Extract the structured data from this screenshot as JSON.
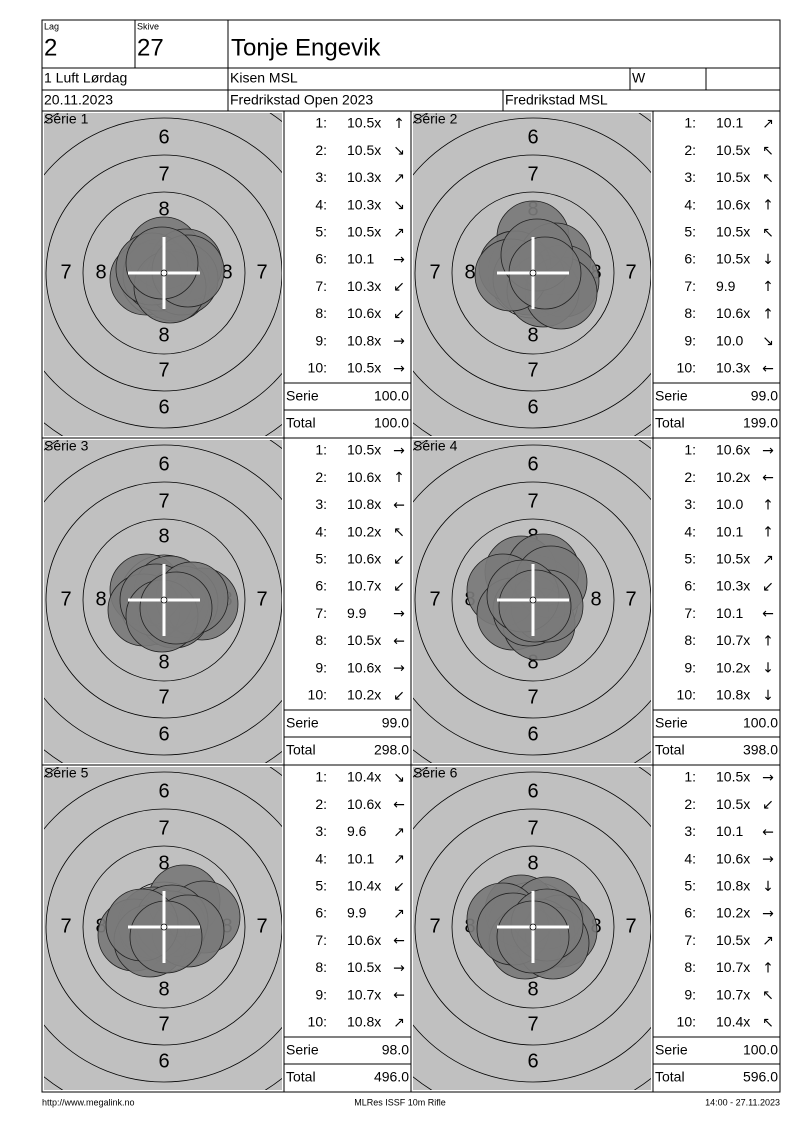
{
  "header": {
    "lag_label": "Lag",
    "lag": "2",
    "skive_label": "Skive",
    "skive": "27",
    "name": "Tonje Engevik",
    "class": "1 Luft Lørdag",
    "club": "Kisen MSL",
    "w": "W",
    "date": "20.11.2023",
    "event": "Fredrikstad Open 2023",
    "organizer": "Fredrikstad MSL"
  },
  "rings": [
    "6",
    "7",
    "8"
  ],
  "series": [
    {
      "title": "Série 1",
      "shots": [
        [
          "1:",
          "10.5x",
          "↑"
        ],
        [
          "2:",
          "10.5x",
          "↘"
        ],
        [
          "3:",
          "10.3x",
          "↗"
        ],
        [
          "4:",
          "10.3x",
          "↘"
        ],
        [
          "5:",
          "10.5x",
          "↗"
        ],
        [
          "6:",
          "10.1",
          "→"
        ],
        [
          "7:",
          "10.3x",
          "↙"
        ],
        [
          "8:",
          "10.6x",
          "↙"
        ],
        [
          "9:",
          "10.8x",
          "→"
        ],
        [
          "10:",
          "10.5x",
          "→"
        ]
      ],
      "serie_label": "Serie",
      "serie": "100.0",
      "total_label": "Total",
      "total": "100.0"
    },
    {
      "title": "Série 2",
      "shots": [
        [
          "1:",
          "10.1",
          "↗"
        ],
        [
          "2:",
          "10.5x",
          "↖"
        ],
        [
          "3:",
          "10.5x",
          "↖"
        ],
        [
          "4:",
          "10.6x",
          "↑"
        ],
        [
          "5:",
          "10.5x",
          "↖"
        ],
        [
          "6:",
          "10.5x",
          "↓"
        ],
        [
          "7:",
          "9.9",
          "↑"
        ],
        [
          "8:",
          "10.6x",
          "↑"
        ],
        [
          "9:",
          "10.0",
          "↘"
        ],
        [
          "10:",
          "10.3x",
          "←"
        ]
      ],
      "serie_label": "Serie",
      "serie": "99.0",
      "total_label": "Total",
      "total": "199.0"
    },
    {
      "title": "Série 3",
      "shots": [
        [
          "1:",
          "10.5x",
          "→"
        ],
        [
          "2:",
          "10.6x",
          "↑"
        ],
        [
          "3:",
          "10.8x",
          "←"
        ],
        [
          "4:",
          "10.2x",
          "↖"
        ],
        [
          "5:",
          "10.6x",
          "↙"
        ],
        [
          "6:",
          "10.7x",
          "↙"
        ],
        [
          "7:",
          "9.9",
          "→"
        ],
        [
          "8:",
          "10.5x",
          "←"
        ],
        [
          "9:",
          "10.6x",
          "→"
        ],
        [
          "10:",
          "10.2x",
          "↙"
        ]
      ],
      "serie_label": "Serie",
      "serie": "99.0",
      "total_label": "Total",
      "total": "298.0"
    },
    {
      "title": "Série 4",
      "shots": [
        [
          "1:",
          "10.6x",
          "→"
        ],
        [
          "2:",
          "10.2x",
          "←"
        ],
        [
          "3:",
          "10.0",
          "↑"
        ],
        [
          "4:",
          "10.1",
          "↑"
        ],
        [
          "5:",
          "10.5x",
          "↗"
        ],
        [
          "6:",
          "10.3x",
          "↙"
        ],
        [
          "7:",
          "10.1",
          "←"
        ],
        [
          "8:",
          "10.7x",
          "↑"
        ],
        [
          "9:",
          "10.2x",
          "↓"
        ],
        [
          "10:",
          "10.8x",
          "↓"
        ]
      ],
      "serie_label": "Serie",
      "serie": "100.0",
      "total_label": "Total",
      "total": "398.0"
    },
    {
      "title": "Série 5",
      "shots": [
        [
          "1:",
          "10.4x",
          "↘"
        ],
        [
          "2:",
          "10.6x",
          "←"
        ],
        [
          "3:",
          "9.6",
          "↗"
        ],
        [
          "4:",
          "10.1",
          "↗"
        ],
        [
          "5:",
          "10.4x",
          "↙"
        ],
        [
          "6:",
          "9.9",
          "↗"
        ],
        [
          "7:",
          "10.6x",
          "←"
        ],
        [
          "8:",
          "10.5x",
          "→"
        ],
        [
          "9:",
          "10.7x",
          "←"
        ],
        [
          "10:",
          "10.8x",
          "↗"
        ]
      ],
      "serie_label": "Serie",
      "serie": "98.0",
      "total_label": "Total",
      "total": "496.0"
    },
    {
      "title": "Série 6",
      "shots": [
        [
          "1:",
          "10.5x",
          "→"
        ],
        [
          "2:",
          "10.5x",
          "↙"
        ],
        [
          "3:",
          "10.1",
          "←"
        ],
        [
          "4:",
          "10.6x",
          "→"
        ],
        [
          "5:",
          "10.8x",
          "↓"
        ],
        [
          "6:",
          "10.2x",
          "→"
        ],
        [
          "7:",
          "10.5x",
          "↗"
        ],
        [
          "8:",
          "10.7x",
          "↑"
        ],
        [
          "9:",
          "10.7x",
          "↖"
        ],
        [
          "10:",
          "10.4x",
          "↖"
        ]
      ],
      "serie_label": "Serie",
      "serie": "100.0",
      "total_label": "Total",
      "total": "596.0"
    }
  ],
  "footer": {
    "url": "http://www.megalink.no",
    "program": "MLRes ISSF 10m Rifle",
    "timestamp": "14:00 - 27.11.2023"
  }
}
